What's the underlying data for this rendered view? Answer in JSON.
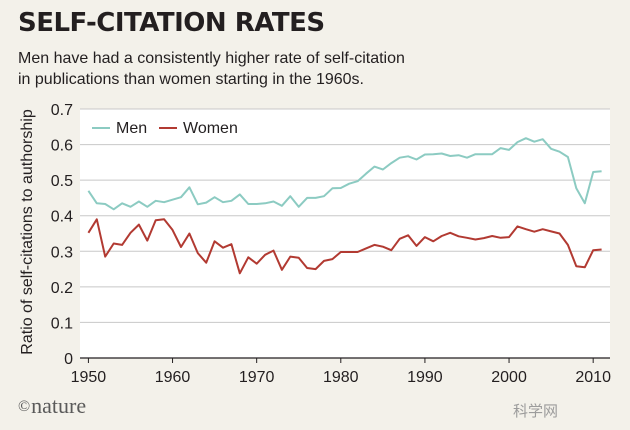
{
  "title": "SELF-CITATION RATES",
  "subtitle": [
    "Men have had a consistently higher rate of self-citation",
    "in publications than women starting in the 1960s."
  ],
  "logo": {
    "symbol": "©",
    "text": "nature"
  },
  "watermark": "科学网",
  "colors": {
    "men": "#8ccbc2",
    "women": "#b23a32",
    "grid": "#c8c8c8",
    "plot_bg": "#ffffff",
    "page_bg": "#f3f1ea"
  },
  "chart_data": {
    "type": "line",
    "title": "SELF-CITATION RATES",
    "xlabel": "",
    "ylabel": "Ratio of self-citations to authorship",
    "xlim": [
      1949,
      2012
    ],
    "ylim": [
      0,
      0.7
    ],
    "xticks": [
      1950,
      1960,
      1970,
      1980,
      1990,
      2000,
      2010
    ],
    "yticks": [
      0,
      0.1,
      0.2,
      0.3,
      0.4,
      0.5,
      0.6,
      0.7
    ],
    "ytick_labels": [
      "0",
      "0.1",
      "0.2",
      "0.3",
      "0.4",
      "0.5",
      "0.6",
      "0.7"
    ],
    "grid": true,
    "legend": "top-left",
    "x": [
      1950,
      1951,
      1952,
      1953,
      1954,
      1955,
      1956,
      1957,
      1958,
      1959,
      1960,
      1961,
      1962,
      1963,
      1964,
      1965,
      1966,
      1967,
      1968,
      1969,
      1970,
      1971,
      1972,
      1973,
      1974,
      1975,
      1976,
      1977,
      1978,
      1979,
      1980,
      1981,
      1982,
      1983,
      1984,
      1985,
      1986,
      1987,
      1988,
      1989,
      1990,
      1991,
      1992,
      1993,
      1994,
      1995,
      1996,
      1997,
      1998,
      1999,
      2000,
      2001,
      2002,
      2003,
      2004,
      2005,
      2006,
      2007,
      2008,
      2009,
      2010,
      2011
    ],
    "series": [
      {
        "name": "Men",
        "color": "#8ccbc2",
        "values": [
          0.47,
          0.435,
          0.433,
          0.418,
          0.435,
          0.425,
          0.44,
          0.425,
          0.442,
          0.438,
          0.445,
          0.452,
          0.48,
          0.432,
          0.437,
          0.452,
          0.438,
          0.442,
          0.46,
          0.433,
          0.433,
          0.435,
          0.44,
          0.428,
          0.455,
          0.425,
          0.45,
          0.45,
          0.455,
          0.477,
          0.478,
          0.49,
          0.497,
          0.518,
          0.538,
          0.53,
          0.548,
          0.563,
          0.567,
          0.558,
          0.572,
          0.573,
          0.575,
          0.568,
          0.57,
          0.563,
          0.573,
          0.573,
          0.573,
          0.59,
          0.585,
          0.607,
          0.618,
          0.608,
          0.615,
          0.588,
          0.58,
          0.565,
          0.477,
          0.435,
          0.523,
          0.525
        ]
      },
      {
        "name": "Women",
        "color": "#b23a32",
        "values": [
          0.352,
          0.39,
          0.285,
          0.322,
          0.318,
          0.352,
          0.375,
          0.33,
          0.387,
          0.39,
          0.36,
          0.312,
          0.35,
          0.295,
          0.268,
          0.328,
          0.31,
          0.32,
          0.238,
          0.283,
          0.265,
          0.29,
          0.302,
          0.248,
          0.285,
          0.282,
          0.253,
          0.25,
          0.273,
          0.278,
          0.298,
          0.298,
          0.298,
          0.308,
          0.318,
          0.313,
          0.303,
          0.335,
          0.345,
          0.315,
          0.34,
          0.328,
          0.343,
          0.352,
          0.342,
          0.338,
          0.333,
          0.337,
          0.343,
          0.338,
          0.34,
          0.37,
          0.362,
          0.355,
          0.362,
          0.356,
          0.35,
          0.318,
          0.258,
          0.255,
          0.303,
          0.305
        ]
      }
    ]
  }
}
